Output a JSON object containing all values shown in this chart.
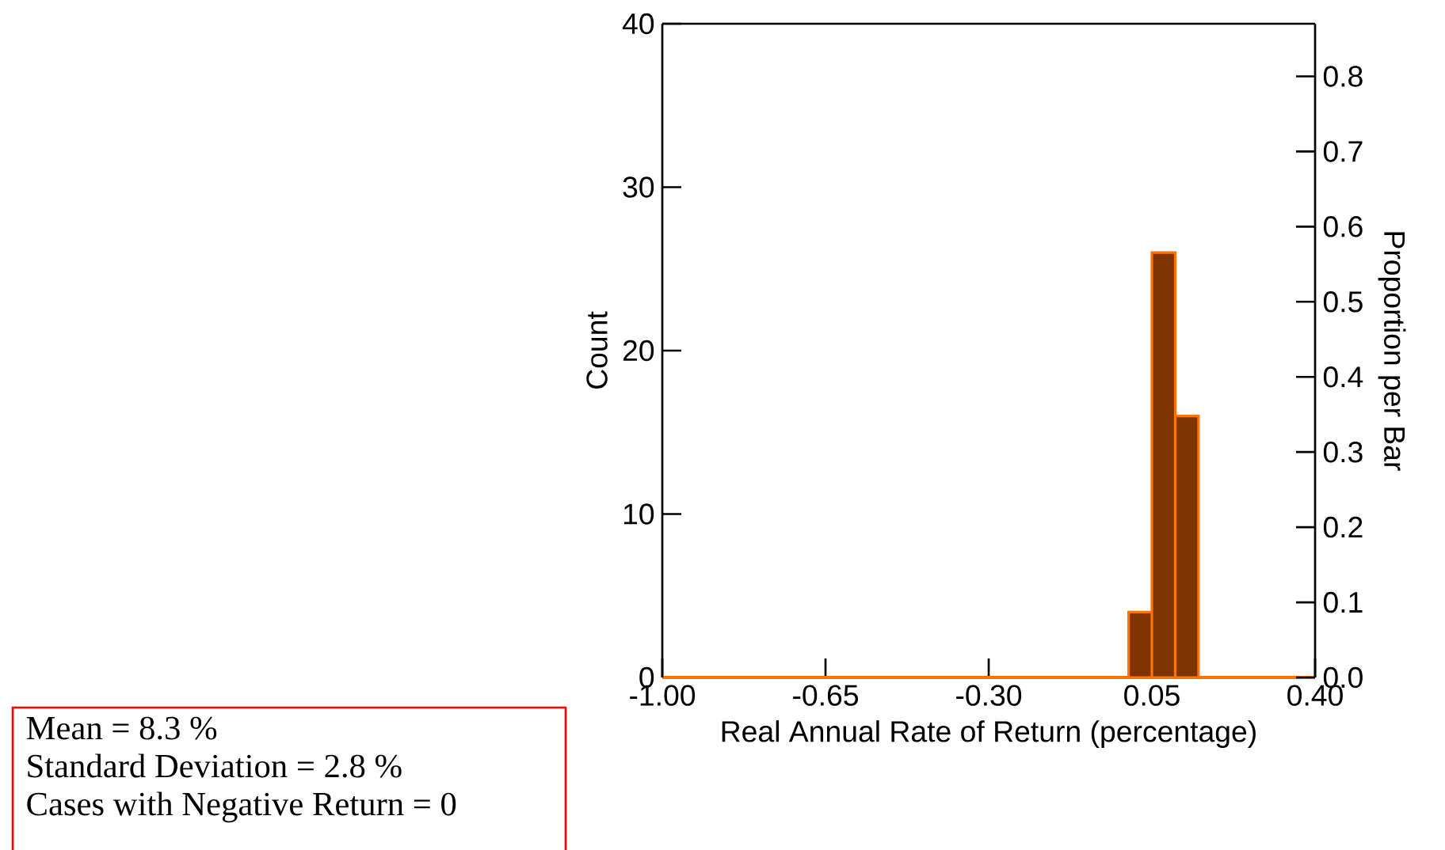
{
  "chart_data": {
    "type": "histogram",
    "bins": [
      0.0,
      0.05,
      0.1,
      0.15
    ],
    "values": [
      4,
      26,
      16
    ],
    "color": "#7f3300",
    "xlabel": "Real Annual Rate of Return (percentage)",
    "ylabel": "Count",
    "y2label": "Proportion per Bar",
    "xlim": [
      -1.0,
      0.4
    ],
    "xticks": [
      {
        "value": -1.0,
        "label": "-1.00"
      },
      {
        "value": -0.65,
        "label": "-0.65"
      },
      {
        "value": -0.3,
        "label": "-0.30"
      },
      {
        "value": 0.05,
        "label": "0.05"
      },
      {
        "value": 0.4,
        "label": "0.40"
      }
    ],
    "ylim": [
      0,
      40
    ],
    "yticks": [
      0,
      10,
      20,
      30,
      40
    ],
    "y2lim": [
      0,
      0.87
    ],
    "y2ticks": [
      {
        "value": 0,
        "label": "0.0"
      },
      0.1,
      0.2,
      0.3,
      0.4,
      0.5,
      0.6,
      0.7,
      0.8
    ],
    "grid": false,
    "annotations": [
      "Mean = 8.3 %",
      "Standard Deviation = 2.8 %",
      "Cases with Negative Return = 0"
    ]
  }
}
